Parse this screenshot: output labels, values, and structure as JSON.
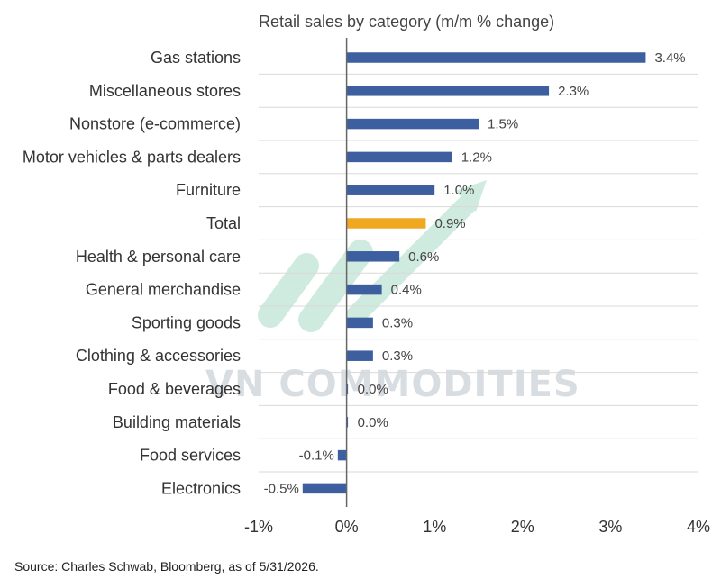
{
  "source": "Source: Charles Schwab, Bloomberg, as of 5/31/2026.",
  "watermark": {
    "text": "VN COMMODITIES",
    "color": "#a8dcc6"
  },
  "colors": {
    "bar": "#3e5f9f",
    "highlight": "#efa820",
    "grid": "#d9d9d9",
    "axis": "#666666"
  },
  "chart_data": {
    "type": "bar",
    "orientation": "horizontal",
    "title": "Retail sales by category (m/m % change)",
    "categories": [
      "Gas stations",
      "Miscellaneous stores",
      "Nonstore (e-commerce)",
      "Motor vehicles & parts dealers",
      "Furniture",
      "Total",
      "Health & personal care",
      "General merchandise",
      "Sporting goods",
      "Clothing & accessories",
      "Food & beverages",
      "Building materials",
      "Food services",
      "Electronics"
    ],
    "values": [
      3.4,
      2.3,
      1.5,
      1.2,
      1.0,
      0.9,
      0.6,
      0.4,
      0.3,
      0.3,
      0.0,
      0.0,
      -0.1,
      -0.5
    ],
    "labels": [
      "3.4%",
      "2.3%",
      "1.5%",
      "1.2%",
      "1.0%",
      "0.9%",
      "0.6%",
      "0.4%",
      "0.3%",
      "0.3%",
      "0.0%",
      "0.0%",
      "-0.1%",
      "-0.5%"
    ],
    "highlight": "Total",
    "xlim": [
      -1,
      4
    ],
    "xticks": [
      -1,
      0,
      1,
      2,
      3,
      4
    ],
    "xtick_labels": [
      "-1%",
      "0%",
      "1%",
      "2%",
      "3%",
      "4%"
    ],
    "grid": "horizontal",
    "legend": "none"
  }
}
